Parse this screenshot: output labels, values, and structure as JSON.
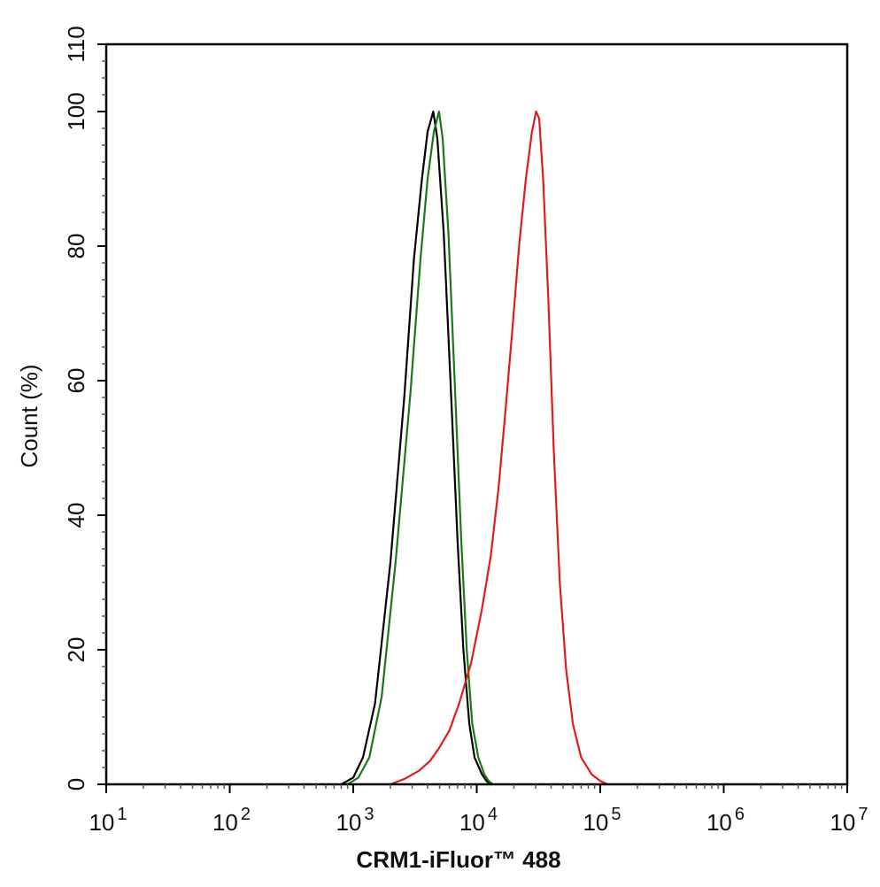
{
  "chart_data": {
    "type": "line",
    "xscale": "log",
    "xlim": [
      10,
      10000000
    ],
    "ylim": [
      0,
      110
    ],
    "xlabel": "CRM1-iFluor™ 488",
    "ylabel": "Count  (%)",
    "x_ticks": [
      {
        "base": "10",
        "exp": "1",
        "value": 10
      },
      {
        "base": "10",
        "exp": "2",
        "value": 100
      },
      {
        "base": "10",
        "exp": "3",
        "value": 1000
      },
      {
        "base": "10",
        "exp": "4",
        "value": 10000
      },
      {
        "base": "10",
        "exp": "5",
        "value": 100000
      },
      {
        "base": "10",
        "exp": "6",
        "value": 1000000
      },
      {
        "base": "10",
        "exp": "7",
        "value": 10000000
      }
    ],
    "y_ticks": [
      0,
      20,
      40,
      60,
      80,
      100,
      110
    ],
    "grid": false,
    "series": [
      {
        "color": "#000000",
        "points": [
          [
            800,
            0
          ],
          [
            1000,
            1
          ],
          [
            1200,
            4
          ],
          [
            1500,
            12
          ],
          [
            2000,
            33
          ],
          [
            2600,
            58
          ],
          [
            3100,
            78
          ],
          [
            3600,
            90
          ],
          [
            4000,
            97
          ],
          [
            4450,
            100
          ],
          [
            4800,
            96
          ],
          [
            5400,
            82
          ],
          [
            6200,
            58
          ],
          [
            7000,
            36
          ],
          [
            7800,
            20
          ],
          [
            8700,
            9
          ],
          [
            9600,
            4
          ],
          [
            11000,
            1.5
          ],
          [
            12000,
            0.5
          ],
          [
            13000,
            0
          ]
        ]
      },
      {
        "color": "#1a7a1a",
        "points": [
          [
            900,
            0
          ],
          [
            1100,
            1
          ],
          [
            1350,
            4
          ],
          [
            1700,
            13
          ],
          [
            2200,
            33
          ],
          [
            2900,
            58
          ],
          [
            3500,
            78
          ],
          [
            4000,
            90
          ],
          [
            4500,
            97
          ],
          [
            4950,
            100
          ],
          [
            5300,
            96
          ],
          [
            5900,
            82
          ],
          [
            6700,
            58
          ],
          [
            7500,
            36
          ],
          [
            8300,
            20
          ],
          [
            9200,
            9
          ],
          [
            10300,
            4
          ],
          [
            11500,
            1.5
          ],
          [
            12500,
            0.5
          ],
          [
            13500,
            0
          ]
        ]
      },
      {
        "color": "#e31a1a",
        "points": [
          [
            2000,
            0
          ],
          [
            2600,
            0.8
          ],
          [
            3400,
            2
          ],
          [
            4200,
            3.5
          ],
          [
            5000,
            5.5
          ],
          [
            6000,
            8
          ],
          [
            7200,
            12
          ],
          [
            9000,
            18
          ],
          [
            11000,
            26
          ],
          [
            13000,
            34
          ],
          [
            15000,
            44
          ],
          [
            17000,
            55
          ],
          [
            19500,
            68
          ],
          [
            22000,
            80
          ],
          [
            25000,
            90
          ],
          [
            28000,
            97
          ],
          [
            30200,
            100
          ],
          [
            32000,
            99
          ],
          [
            34500,
            90
          ],
          [
            38000,
            72
          ],
          [
            42000,
            50
          ],
          [
            47000,
            30
          ],
          [
            53000,
            17
          ],
          [
            60000,
            9
          ],
          [
            70000,
            4
          ],
          [
            85000,
            1.5
          ],
          [
            100000,
            0.5
          ],
          [
            115000,
            0
          ]
        ]
      }
    ]
  }
}
